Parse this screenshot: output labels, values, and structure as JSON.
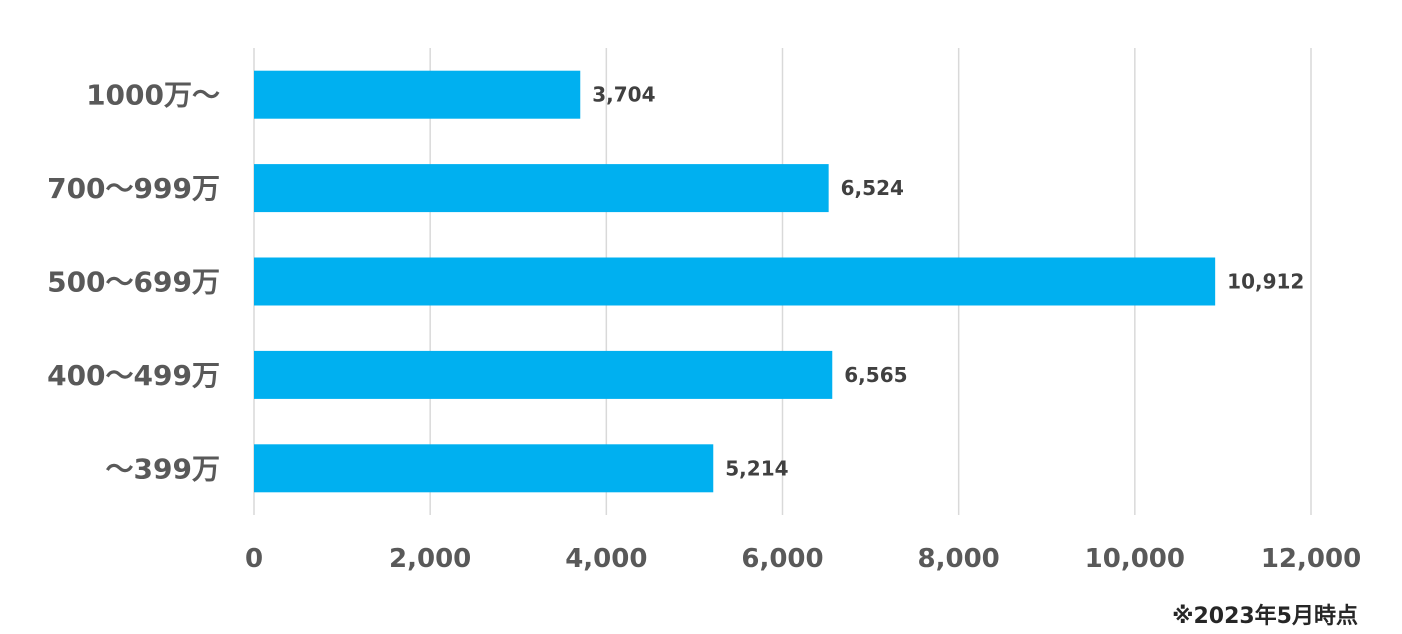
{
  "chart_data": {
    "type": "bar",
    "orientation": "horizontal",
    "categories": [
      "1000万～",
      "700～999万",
      "500～699万",
      "400～499万",
      "～399万"
    ],
    "values": [
      3704,
      6524,
      10912,
      6565,
      5214
    ],
    "data_labels": [
      "3,704",
      "6,524",
      "10,912",
      "6,565",
      "5,214"
    ],
    "x_ticks": [
      {
        "value": 0,
        "label": "0"
      },
      {
        "value": 2000,
        "label": "2,000"
      },
      {
        "value": 4000,
        "label": "4,000"
      },
      {
        "value": 6000,
        "label": "6,000"
      },
      {
        "value": 8000,
        "label": "8,000"
      },
      {
        "value": 10000,
        "label": "10,000"
      },
      {
        "value": 12000,
        "label": "12,000"
      }
    ],
    "xlim": [
      0,
      12000
    ],
    "grid": true,
    "legend": "none",
    "title": "",
    "xlabel": "",
    "ylabel": ""
  },
  "colors": {
    "bar": "#00B0F0",
    "grid": "#D9D9D9",
    "category_text": "#595959",
    "tick_text": "#595959",
    "data_label_text": "#404040"
  },
  "footnote": "※2023年5月時点"
}
